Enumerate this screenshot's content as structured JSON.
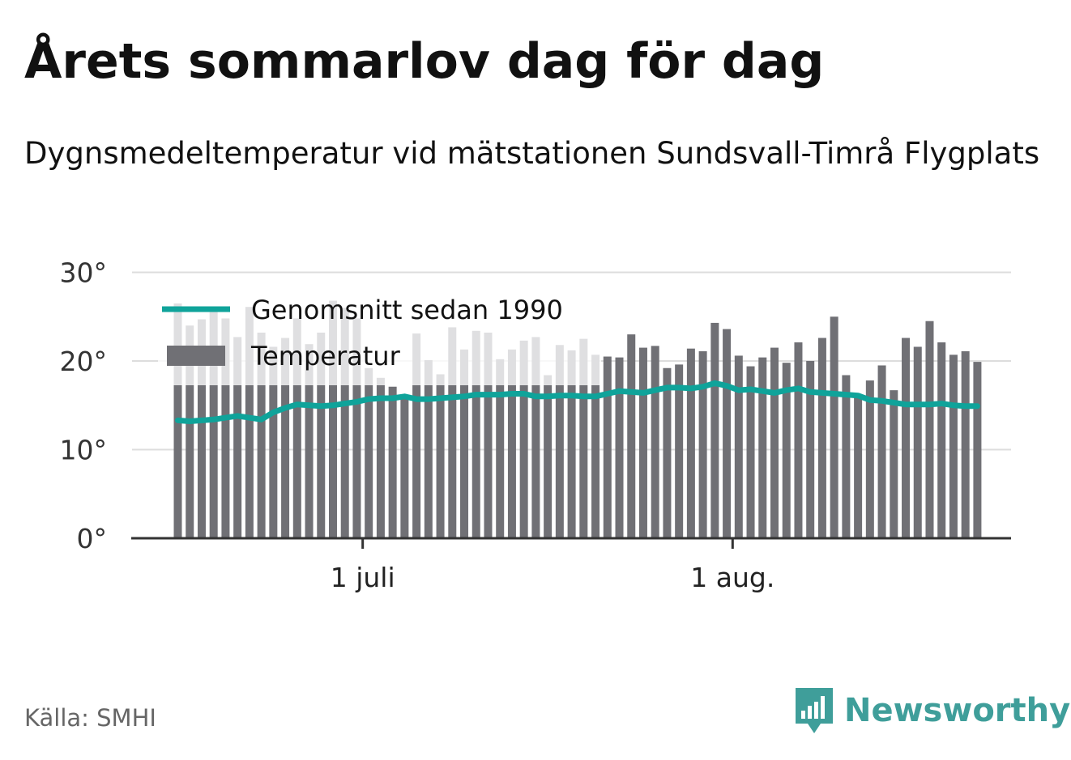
{
  "title": "Årets sommarlov dag för dag",
  "subtitle": "Dygnsmedeltemperatur vid mätstationen Sundsvall-Timrå Flygplats",
  "source": "Källa: SMHI",
  "brand": {
    "name": "Newsworthy",
    "logo_icon": "bar-chart-speech-bubble",
    "color": "#3f9e9a"
  },
  "chart_data": {
    "type": "bar",
    "title": "",
    "xlabel": "",
    "ylabel": "",
    "ylim": [
      0,
      30
    ],
    "yticks": [
      {
        "value": 0,
        "label": "0°"
      },
      {
        "value": 10,
        "label": "10°"
      },
      {
        "value": 20,
        "label": "20°"
      },
      {
        "value": 30,
        "label": "30°"
      }
    ],
    "xticks": [
      {
        "day_index": 16,
        "label": "1 juli"
      },
      {
        "day_index": 47,
        "label": "1 aug."
      }
    ],
    "x_range": [
      "2024-06-15",
      "2024-08-20"
    ],
    "grid": "horizontal",
    "legend_placement": "top-left",
    "colors": {
      "bars": "#707075",
      "average_line": "#0fa39a",
      "grid": "#dddddd",
      "axis": "#333333"
    },
    "series": [
      {
        "name": "Temperatur",
        "type": "bar",
        "values": [
          26.5,
          24.0,
          24.7,
          25.8,
          24.8,
          22.7,
          26.1,
          23.2,
          21.6,
          22.6,
          24.8,
          21.9,
          23.2,
          26.8,
          26.0,
          24.8,
          19.2,
          18.1,
          17.1,
          16.2,
          23.1,
          20.1,
          18.5,
          23.8,
          21.3,
          23.4,
          23.2,
          20.2,
          21.3,
          22.3,
          22.7,
          18.4,
          21.8,
          21.2,
          22.5,
          20.7,
          20.5,
          20.4,
          23.0,
          21.5,
          21.7,
          19.2,
          19.6,
          21.4,
          21.1,
          24.3,
          23.6,
          20.6,
          19.4,
          20.4,
          21.5,
          19.8,
          22.1,
          20.0,
          22.6,
          25.0,
          18.4,
          16.0,
          17.8,
          19.5,
          16.7,
          22.6,
          21.6,
          24.5,
          22.1,
          20.7,
          21.1,
          19.9
        ]
      },
      {
        "name": "Genomsnitt sedan 1990",
        "type": "line",
        "values": [
          13.3,
          13.2,
          13.3,
          13.4,
          13.6,
          13.8,
          13.6,
          13.4,
          14.2,
          14.7,
          15.1,
          15.0,
          14.9,
          15.0,
          15.2,
          15.4,
          15.7,
          15.8,
          15.8,
          16.0,
          15.7,
          15.7,
          15.8,
          15.9,
          16.0,
          16.2,
          16.2,
          16.2,
          16.3,
          16.3,
          16.0,
          16.0,
          16.1,
          16.1,
          16.0,
          16.0,
          16.3,
          16.6,
          16.5,
          16.4,
          16.7,
          17.0,
          17.0,
          16.9,
          17.1,
          17.5,
          17.2,
          16.7,
          16.8,
          16.6,
          16.4,
          16.7,
          16.9,
          16.5,
          16.4,
          16.3,
          16.2,
          16.1,
          15.6,
          15.5,
          15.3,
          15.1,
          15.1,
          15.1,
          15.2,
          15.0,
          14.9,
          14.9
        ]
      }
    ]
  }
}
